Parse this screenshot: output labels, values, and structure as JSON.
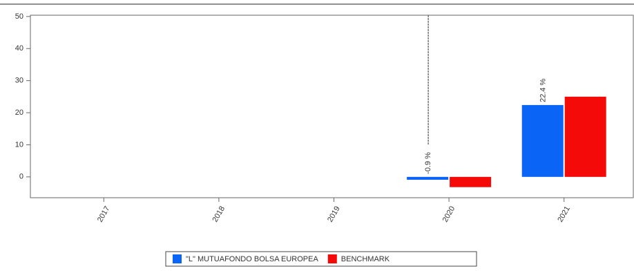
{
  "chart_data": {
    "type": "bar",
    "categories": [
      "2017",
      "2018",
      "2019",
      "2020",
      "2021"
    ],
    "series": [
      {
        "name": "\"L\" MUTUAFONDO BOLSA EUROPEA",
        "color": "#0a64f5",
        "values": [
          null,
          null,
          null,
          -0.9,
          22.4
        ],
        "value_labels": [
          null,
          null,
          null,
          "-0.9 %",
          "22.4 %"
        ]
      },
      {
        "name": "BENCHMARK",
        "color": "#f50a0a",
        "values": [
          null,
          null,
          null,
          -3.2,
          25.0
        ]
      }
    ],
    "ylim": [
      -6.5,
      50.4
    ],
    "yticks": [
      0,
      10,
      20,
      30,
      40,
      50
    ],
    "grid": false,
    "legend": "bottom"
  }
}
